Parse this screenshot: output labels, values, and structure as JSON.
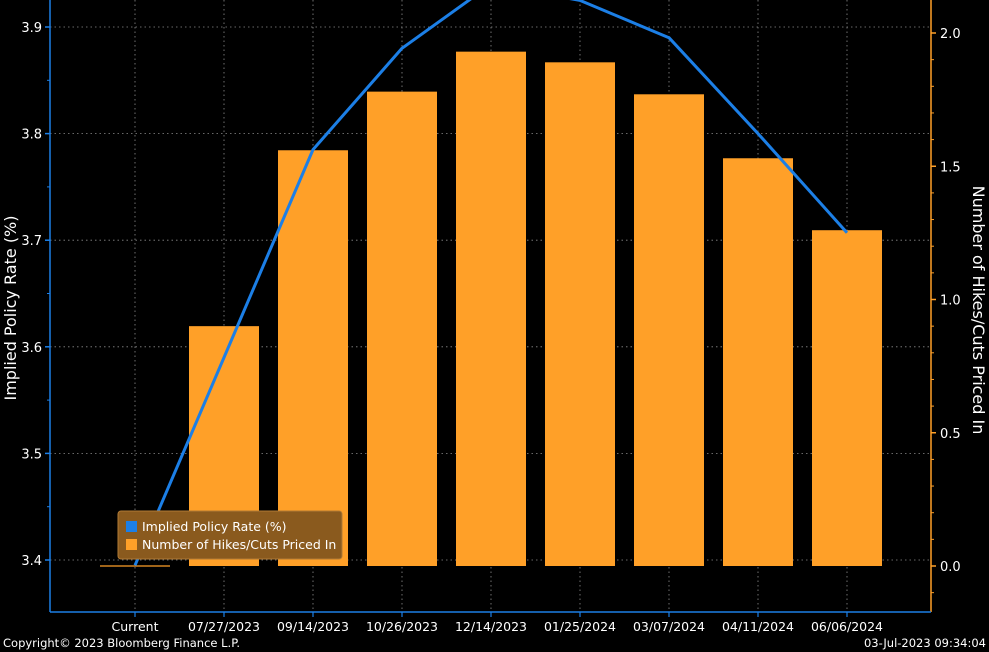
{
  "chart_data": {
    "type": "bar",
    "categories": [
      "Current",
      "07/27/2023",
      "09/14/2023",
      "10/26/2023",
      "12/14/2023",
      "01/25/2024",
      "03/07/2024",
      "04/11/2024",
      "06/06/2024"
    ],
    "series": [
      {
        "name": "Implied Policy Rate (%)",
        "type": "line",
        "axis": "left",
        "color": "#1c7fe6",
        "values": [
          3.395,
          3.59,
          3.785,
          3.88,
          3.94,
          3.925,
          3.89,
          3.8,
          3.707
        ]
      },
      {
        "name": "Number of Hikes/Cuts Priced In",
        "type": "bar",
        "axis": "right",
        "color": "#ffa028",
        "values": [
          0.0,
          0.9,
          1.56,
          1.78,
          1.93,
          1.89,
          1.77,
          1.53,
          1.26
        ]
      }
    ],
    "ylabel_left": "Implied Policy Rate (%)",
    "ylabel_right": "Number of Hikes/Cuts Priced In",
    "ylim_left": [
      3.35,
      3.93
    ],
    "yticks_left": [
      "3.4",
      "3.5",
      "3.6",
      "3.7",
      "3.8",
      "3.9"
    ],
    "ylim_right": [
      -0.18,
      2.05
    ],
    "yticks_right": [
      "0.0",
      "0.5",
      "1.0",
      "1.5",
      "2.0"
    ],
    "grid": true,
    "legend": {
      "position": "bottom-left",
      "items": [
        "Implied Policy Rate (%)",
        "Number of Hikes/Cuts Priced In"
      ]
    }
  },
  "colors": {
    "background": "#000000",
    "axis_left": "#1c7fe6",
    "axis_right": "#ffa028",
    "grid": "#8a8a8a"
  },
  "footer": {
    "copyright": "Copyright© 2023 Bloomberg Finance L.P.",
    "timestamp": "03-Jul-2023 09:34:04"
  }
}
